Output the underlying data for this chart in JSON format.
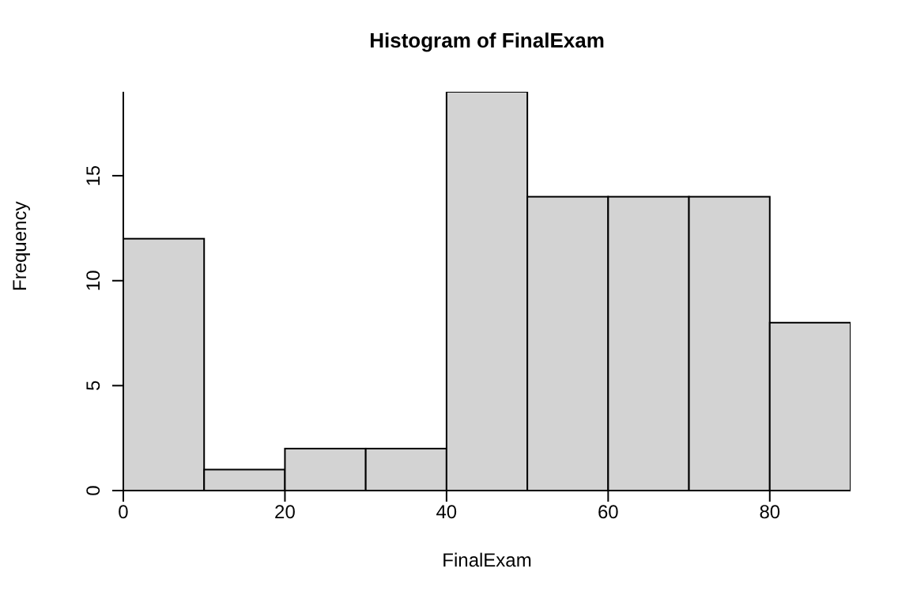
{
  "chart_data": {
    "type": "histogram",
    "title": "Histogram of FinalExam",
    "xlabel": "FinalExam",
    "ylabel": "Frequency",
    "bins": [
      0,
      10,
      20,
      30,
      40,
      50,
      60,
      70,
      80,
      90
    ],
    "values": [
      12,
      1,
      2,
      2,
      19,
      14,
      14,
      14,
      8
    ],
    "color": "#d3d3d3",
    "xlim": [
      0,
      90
    ],
    "xticks": [
      0,
      20,
      40,
      60,
      80
    ],
    "ylim": [
      0,
      19
    ],
    "yticks": [
      0,
      5,
      10,
      15
    ]
  }
}
